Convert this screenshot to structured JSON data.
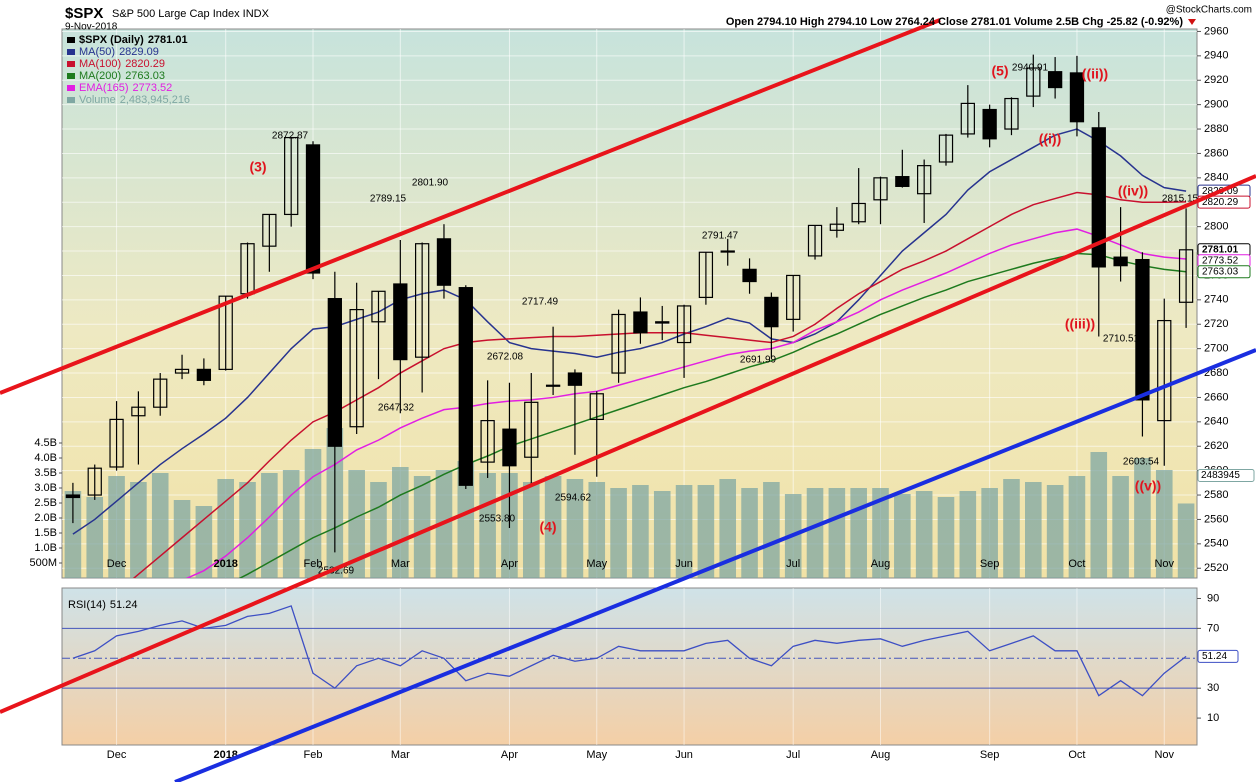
{
  "chart_data": [
    {
      "type": "candlestick",
      "title": "$SPX",
      "subtitle": "S&P 500 Large Cap Index INDX",
      "date": "9-Nov-2018",
      "source": "@StockCharts.com",
      "quote": "Open 2794.10 High 2794.10 Low 2764.24 Close 2781.01 Volume 2.5B Chg -25.82 (-0.92%)",
      "name": "$SPX (Daily)",
      "categories": [
        null,
        null,
        "Dec",
        null,
        null,
        null,
        null,
        "2018",
        null,
        null,
        null,
        "Feb",
        null,
        null,
        null,
        "Mar",
        null,
        null,
        null,
        null,
        "Apr",
        null,
        null,
        null,
        "May",
        null,
        null,
        null,
        "Jun",
        null,
        null,
        null,
        null,
        "Jul",
        null,
        null,
        null,
        "Aug",
        null,
        null,
        null,
        null,
        "Sep",
        null,
        null,
        null,
        "Oct",
        null,
        null,
        null,
        "Nov",
        null
      ],
      "open": [
        2580,
        2580,
        2603,
        2645,
        2652,
        2680,
        2683,
        2683,
        2745,
        2784,
        2810,
        2867,
        2741,
        2636,
        2722,
        2753,
        2693,
        2790,
        2750,
        2607,
        2634,
        2611,
        2670,
        2680,
        2642,
        2680,
        2730,
        2722,
        2705,
        2742,
        2780,
        2765,
        2742,
        2724,
        2776,
        2797,
        2804,
        2822,
        2841,
        2827,
        2853,
        2876,
        2896,
        2880,
        2907,
        2927,
        2926,
        2881,
        2775,
        2773,
        2641,
        2738
      ],
      "high": [
        2590,
        2605,
        2657,
        2665,
        2680,
        2695,
        2692,
        2743,
        2787,
        2810,
        2873,
        2870,
        2763,
        2754,
        2747,
        2789,
        2787,
        2802,
        2752,
        2674,
        2672,
        2680,
        2718,
        2683,
        2665,
        2732,
        2742,
        2735,
        2736,
        2779,
        2790,
        2774,
        2746,
        2760,
        2801,
        2816,
        2848,
        2841,
        2863,
        2855,
        2876,
        2916,
        2900,
        2906,
        2941,
        2939,
        2940,
        2894,
        2816,
        2779,
        2741,
        2815
      ],
      "low": [
        2557,
        2576,
        2600,
        2605,
        2645,
        2675,
        2670,
        2682,
        2741,
        2763,
        2800,
        2757,
        2533,
        2630,
        2675,
        2647,
        2664,
        2741,
        2585,
        2594,
        2553,
        2587,
        2662,
        2613,
        2595,
        2672,
        2704,
        2707,
        2676,
        2736,
        2768,
        2745,
        2692,
        2714,
        2773,
        2791,
        2802,
        2802,
        2832,
        2803,
        2850,
        2873,
        2865,
        2875,
        2898,
        2905,
        2874,
        2710,
        2755,
        2628,
        2604,
        2717
      ],
      "close": [
        2578,
        2602,
        2642,
        2652,
        2675,
        2683,
        2674,
        2743,
        2786,
        2810,
        2873,
        2762,
        2620,
        2732,
        2747,
        2691,
        2786,
        2752,
        2588,
        2641,
        2604,
        2656,
        2670,
        2670,
        2663,
        2728,
        2713,
        2721,
        2735,
        2779,
        2780,
        2755,
        2718,
        2760,
        2801,
        2802,
        2819,
        2840,
        2833,
        2850,
        2875,
        2901,
        2872,
        2905,
        2930,
        2914,
        2886,
        2767,
        2768,
        2658,
        2723,
        2781.01
      ],
      "up_color": "#000000",
      "down_color": "#000000",
      "series": [
        {
          "name": "MA(50)",
          "color": "#27338f",
          "values": [
            2548,
            2560,
            2575,
            2590,
            2605,
            2618,
            2630,
            2643,
            2660,
            2680,
            2700,
            2716,
            2718,
            2724,
            2730,
            2740,
            2745,
            2748,
            2740,
            2722,
            2705,
            2700,
            2698,
            2696,
            2693,
            2697,
            2700,
            2705,
            2712,
            2718,
            2725,
            2721,
            2708,
            2705,
            2712,
            2722,
            2740,
            2760,
            2780,
            2795,
            2810,
            2830,
            2845,
            2855,
            2865,
            2875,
            2880,
            2870,
            2858,
            2842,
            2832,
            2829.09
          ]
        },
        {
          "name": "MA(100)",
          "color": "#c8102e",
          "values": [
            2480,
            2490,
            2500,
            2515,
            2530,
            2545,
            2560,
            2575,
            2590,
            2608,
            2625,
            2640,
            2648,
            2658,
            2668,
            2680,
            2690,
            2700,
            2705,
            2707,
            2708,
            2709,
            2710,
            2710,
            2711,
            2712,
            2713,
            2713,
            2713,
            2711,
            2709,
            2707,
            2705,
            2710,
            2720,
            2733,
            2745,
            2755,
            2765,
            2772,
            2780,
            2790,
            2800,
            2810,
            2818,
            2823,
            2828,
            2826,
            2822,
            2820,
            2820,
            2820.29
          ]
        },
        {
          "name": "MA(200)",
          "color": "#1e7a1e",
          "values": [
            2450,
            2458,
            2466,
            2474,
            2482,
            2490,
            2498,
            2506,
            2515,
            2525,
            2535,
            2545,
            2553,
            2562,
            2570,
            2580,
            2588,
            2597,
            2605,
            2612,
            2620,
            2626,
            2632,
            2638,
            2644,
            2650,
            2656,
            2662,
            2668,
            2673,
            2679,
            2685,
            2690,
            2697,
            2705,
            2712,
            2720,
            2728,
            2735,
            2742,
            2748,
            2755,
            2760,
            2765,
            2770,
            2774,
            2778,
            2777,
            2772,
            2768,
            2765,
            2763.03
          ]
        },
        {
          "name": "EMA(165)",
          "color": "#e21ee2",
          "values": [
            2460,
            2470,
            2480,
            2490,
            2500,
            2510,
            2518,
            2530,
            2545,
            2562,
            2580,
            2595,
            2605,
            2617,
            2625,
            2635,
            2643,
            2650,
            2652,
            2655,
            2657,
            2658,
            2660,
            2663,
            2665,
            2670,
            2675,
            2680,
            2685,
            2690,
            2695,
            2698,
            2700,
            2705,
            2715,
            2722,
            2730,
            2740,
            2748,
            2755,
            2762,
            2770,
            2778,
            2785,
            2790,
            2795,
            2798,
            2792,
            2785,
            2778,
            2775,
            2773.52
          ]
        }
      ],
      "volume": {
        "name": "Volume",
        "color": "#7fa7a3",
        "axis": "y2",
        "legend_label": "2,483,945,216",
        "tag_label": "2483945",
        "values": [
          2900000000,
          2700000000,
          3400000000,
          3200000000,
          3500000000,
          2600000000,
          2400000000,
          3300000000,
          3200000000,
          3500000000,
          3600000000,
          4300000000,
          5000000000,
          3600000000,
          3200000000,
          3700000000,
          3400000000,
          3600000000,
          3900000000,
          3500000000,
          3500000000,
          3200000000,
          3400000000,
          3300000000,
          3200000000,
          3000000000,
          3100000000,
          2900000000,
          3100000000,
          3100000000,
          3300000000,
          3000000000,
          3200000000,
          2800000000,
          3000000000,
          3000000000,
          3000000000,
          3000000000,
          2800000000,
          2900000000,
          2700000000,
          2900000000,
          3000000000,
          3300000000,
          3200000000,
          3100000000,
          3400000000,
          4200000000,
          3400000000,
          4000000000,
          3600000000,
          2483945216
        ]
      },
      "ylim": [
        2512,
        2962
      ],
      "yticks": [
        2520,
        2540,
        2560,
        2580,
        2600,
        2620,
        2640,
        2660,
        2680,
        2700,
        2720,
        2740,
        2760,
        2780,
        2800,
        2820,
        2840,
        2860,
        2880,
        2900,
        2920,
        2940,
        2960
      ],
      "y2lim": [
        0,
        18300000000
      ],
      "y2ticks": [
        {
          "value": 500000000,
          "label": "500M"
        },
        {
          "value": 1000000000,
          "label": "1.0B"
        },
        {
          "value": 1500000000,
          "label": "1.5B"
        },
        {
          "value": 2000000000,
          "label": "2.0B"
        },
        {
          "value": 2500000000,
          "label": "2.5B"
        },
        {
          "value": 3000000000,
          "label": "3.0B"
        },
        {
          "value": 3500000000,
          "label": "3.5B"
        },
        {
          "value": 4000000000,
          "label": "4.0B"
        },
        {
          "value": 4500000000,
          "label": "4.5B"
        }
      ],
      "grid": true,
      "annotations": [
        "2872.87",
        "2789.15",
        "2801.90",
        "2647.32",
        "2717.49",
        "2672.08",
        "2553.80",
        "2594.62",
        "2532.69",
        "2791.47",
        "2691.99",
        "2940.91",
        "2710.51",
        "2603.54",
        "2815.15"
      ],
      "wave_labels": [
        "(3)",
        "(4)",
        "(5)",
        "((i))",
        "((ii))",
        "((iii))",
        "((iv))",
        "((v))"
      ]
    },
    {
      "type": "line",
      "title": "RSI(14)",
      "color": "#3d4fc4",
      "values": [
        50,
        55,
        65,
        68,
        72,
        75,
        70,
        72,
        78,
        80,
        85,
        40,
        30,
        45,
        50,
        45,
        55,
        50,
        35,
        40,
        38,
        45,
        52,
        48,
        50,
        58,
        55,
        55,
        55,
        60,
        62,
        50,
        45,
        58,
        62,
        60,
        62,
        63,
        58,
        62,
        65,
        68,
        55,
        60,
        65,
        55,
        55,
        25,
        35,
        25,
        40,
        51.24
      ],
      "ylim": [
        -8,
        97
      ],
      "yticks": [
        10,
        30,
        70,
        90
      ],
      "reference_lines": [
        30,
        50,
        70
      ],
      "grid": true
    }
  ]
}
